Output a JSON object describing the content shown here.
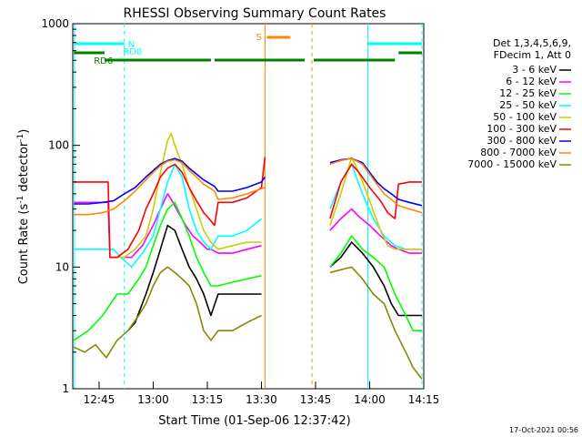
{
  "chart_data": {
    "type": "line",
    "title": "RHESSI Observing Summary Count Rates",
    "xlabel": "Start Time (01-Sep-06 12:37:42)",
    "ylabel_main": "Count Rate (s",
    "ylabel_sup1": "-1",
    "ylabel_mid": " detector",
    "ylabel_sup2": "-1",
    "ylabel_end": ")",
    "yscale": "log",
    "ylim": [
      1,
      1000
    ],
    "xlim_min": [
      37.7,
      135.0
    ],
    "xticks": [
      {
        "m": 45,
        "label": "12:45"
      },
      {
        "m": 60,
        "label": "13:00"
      },
      {
        "m": 75,
        "label": "13:15"
      },
      {
        "m": 90,
        "label": "13:30"
      },
      {
        "m": 105,
        "label": "13:45"
      },
      {
        "m": 120,
        "label": "14:00"
      },
      {
        "m": 135,
        "label": "14:15"
      }
    ],
    "yticks": [
      {
        "v": 1,
        "label": "1"
      },
      {
        "v": 10,
        "label": "10"
      },
      {
        "v": 100,
        "label": "100"
      },
      {
        "v": 1000,
        "label": "1000"
      }
    ],
    "legend_header": [
      "Det 1,3,4,5,6,9,",
      "FDecim 1, Att 0"
    ],
    "series": [
      {
        "name": "3 - 6 keV",
        "color": "#000000",
        "points": [
          [
            53,
            3
          ],
          [
            55,
            3.5
          ],
          [
            58,
            6
          ],
          [
            60,
            9
          ],
          [
            62,
            14
          ],
          [
            64,
            22
          ],
          [
            66,
            20
          ],
          [
            68,
            14
          ],
          [
            70,
            10
          ],
          [
            72,
            8
          ],
          [
            74,
            6
          ],
          [
            76,
            4
          ],
          [
            78,
            6
          ],
          [
            82,
            6
          ],
          [
            86,
            6
          ],
          [
            90,
            6
          ],
          [
            107,
            null
          ],
          [
            109,
            10
          ],
          [
            112,
            12
          ],
          [
            115,
            16
          ],
          [
            118,
            13
          ],
          [
            121,
            10
          ],
          [
            124,
            7
          ],
          [
            126,
            5
          ],
          [
            128,
            4
          ],
          [
            132,
            4
          ],
          [
            134.5,
            4
          ]
        ]
      },
      {
        "name": "6 - 12 keV",
        "color": "#ff00ff",
        "points": [
          [
            38,
            34
          ],
          [
            42,
            34
          ],
          [
            46,
            34
          ],
          [
            47.5,
            34
          ],
          [
            48,
            12
          ],
          [
            51,
            12
          ],
          [
            54,
            12
          ],
          [
            57,
            15
          ],
          [
            60,
            22
          ],
          [
            62,
            30
          ],
          [
            64,
            40
          ],
          [
            65,
            36
          ],
          [
            67,
            28
          ],
          [
            69,
            22
          ],
          [
            71,
            18
          ],
          [
            73,
            16
          ],
          [
            75,
            14
          ],
          [
            76,
            14
          ],
          [
            78,
            13
          ],
          [
            82,
            13
          ],
          [
            86,
            14
          ],
          [
            90,
            15
          ],
          [
            107,
            null
          ],
          [
            109,
            20
          ],
          [
            112,
            25
          ],
          [
            115,
            30
          ],
          [
            117,
            26
          ],
          [
            120,
            22
          ],
          [
            123,
            18
          ],
          [
            126,
            15
          ],
          [
            128,
            14
          ],
          [
            131,
            13
          ],
          [
            134.5,
            13
          ]
        ]
      },
      {
        "name": "12 - 25 keV",
        "color": "#00ff00",
        "points": [
          [
            38,
            2.5
          ],
          [
            42,
            3
          ],
          [
            46,
            4
          ],
          [
            50,
            6
          ],
          [
            53,
            6
          ],
          [
            56,
            8
          ],
          [
            58,
            10
          ],
          [
            60,
            15
          ],
          [
            62,
            22
          ],
          [
            64,
            30
          ],
          [
            66,
            34
          ],
          [
            68,
            25
          ],
          [
            70,
            18
          ],
          [
            72,
            12
          ],
          [
            74,
            9
          ],
          [
            76,
            7
          ],
          [
            78,
            7
          ],
          [
            82,
            7.5
          ],
          [
            86,
            8
          ],
          [
            90,
            8.5
          ],
          [
            107,
            null
          ],
          [
            109,
            10
          ],
          [
            112,
            13
          ],
          [
            115,
            18
          ],
          [
            118,
            14
          ],
          [
            121,
            12
          ],
          [
            124,
            10
          ],
          [
            127,
            6
          ],
          [
            130,
            4
          ],
          [
            132,
            3
          ],
          [
            134.5,
            3
          ]
        ]
      },
      {
        "name": "25 - 50 keV",
        "color": "#00ffff",
        "points": [
          [
            38,
            14
          ],
          [
            42,
            14
          ],
          [
            46,
            14
          ],
          [
            49,
            14
          ],
          [
            51,
            12
          ],
          [
            54,
            10
          ],
          [
            57,
            13
          ],
          [
            60,
            18
          ],
          [
            62,
            30
          ],
          [
            64,
            50
          ],
          [
            66,
            70
          ],
          [
            68,
            55
          ],
          [
            70,
            30
          ],
          [
            72,
            20
          ],
          [
            74,
            16
          ],
          [
            76,
            14
          ],
          [
            78,
            18
          ],
          [
            82,
            18
          ],
          [
            86,
            20
          ],
          [
            90,
            25
          ],
          [
            107,
            null
          ],
          [
            109,
            30
          ],
          [
            112,
            50
          ],
          [
            115,
            70
          ],
          [
            118,
            40
          ],
          [
            121,
            25
          ],
          [
            124,
            18
          ],
          [
            127,
            15
          ],
          [
            130,
            14
          ],
          [
            134.5,
            14
          ]
        ]
      },
      {
        "name": "50 - 100 keV",
        "color": "#cccc00",
        "points": [
          [
            49,
            12
          ],
          [
            52,
            12
          ],
          [
            55,
            14
          ],
          [
            58,
            18
          ],
          [
            60,
            30
          ],
          [
            62,
            60
          ],
          [
            64,
            110
          ],
          [
            65,
            125
          ],
          [
            66,
            100
          ],
          [
            68,
            70
          ],
          [
            70,
            45
          ],
          [
            72,
            30
          ],
          [
            74,
            20
          ],
          [
            76,
            16
          ],
          [
            78,
            14
          ],
          [
            82,
            15
          ],
          [
            86,
            16
          ],
          [
            90,
            16
          ],
          [
            107,
            null
          ],
          [
            109,
            22
          ],
          [
            112,
            40
          ],
          [
            115,
            80
          ],
          [
            117,
            60
          ],
          [
            120,
            35
          ],
          [
            123,
            20
          ],
          [
            125,
            15
          ],
          [
            127,
            14
          ],
          [
            130,
            14
          ],
          [
            134.5,
            14
          ]
        ]
      },
      {
        "name": "100 - 300 keV",
        "color": "#ff0000",
        "points": [
          [
            38,
            50
          ],
          [
            42,
            50
          ],
          [
            46,
            50
          ],
          [
            47.5,
            50
          ],
          [
            48,
            12
          ],
          [
            50,
            12
          ],
          [
            53,
            14
          ],
          [
            56,
            20
          ],
          [
            58,
            30
          ],
          [
            60,
            40
          ],
          [
            62,
            55
          ],
          [
            64,
            65
          ],
          [
            66,
            70
          ],
          [
            68,
            60
          ],
          [
            70,
            45
          ],
          [
            72,
            35
          ],
          [
            74,
            28
          ],
          [
            76,
            24
          ],
          [
            77,
            22
          ],
          [
            78,
            34
          ],
          [
            82,
            34
          ],
          [
            86,
            37
          ],
          [
            90,
            45
          ],
          [
            91,
            80
          ],
          [
            107,
            null
          ],
          [
            109,
            25
          ],
          [
            112,
            50
          ],
          [
            115,
            70
          ],
          [
            117,
            60
          ],
          [
            120,
            45
          ],
          [
            123,
            35
          ],
          [
            125,
            28
          ],
          [
            127,
            25
          ],
          [
            128,
            48
          ],
          [
            131,
            50
          ],
          [
            134.5,
            50
          ]
        ]
      },
      {
        "name": "300 - 800 keV",
        "color": "#0000ff",
        "points": [
          [
            38,
            33
          ],
          [
            42,
            33
          ],
          [
            46,
            34
          ],
          [
            49,
            35
          ],
          [
            52,
            40
          ],
          [
            55,
            45
          ],
          [
            58,
            55
          ],
          [
            60,
            62
          ],
          [
            62,
            70
          ],
          [
            64,
            75
          ],
          [
            66,
            78
          ],
          [
            68,
            74
          ],
          [
            70,
            65
          ],
          [
            72,
            58
          ],
          [
            74,
            52
          ],
          [
            76,
            48
          ],
          [
            77,
            46
          ],
          [
            78,
            42
          ],
          [
            82,
            42
          ],
          [
            86,
            45
          ],
          [
            90,
            50
          ],
          [
            91,
            55
          ],
          [
            107,
            null
          ],
          [
            109,
            72
          ],
          [
            112,
            76
          ],
          [
            115,
            78
          ],
          [
            118,
            72
          ],
          [
            120,
            60
          ],
          [
            122,
            50
          ],
          [
            124,
            44
          ],
          [
            126,
            40
          ],
          [
            128,
            36
          ],
          [
            131,
            34
          ],
          [
            134.5,
            32
          ]
        ]
      },
      {
        "name": "800 - 7000 keV",
        "color": "#ff8800",
        "points": [
          [
            38,
            27
          ],
          [
            42,
            27
          ],
          [
            46,
            28
          ],
          [
            49,
            30
          ],
          [
            52,
            35
          ],
          [
            55,
            42
          ],
          [
            58,
            52
          ],
          [
            60,
            60
          ],
          [
            62,
            68
          ],
          [
            64,
            74
          ],
          [
            66,
            76
          ],
          [
            68,
            72
          ],
          [
            70,
            62
          ],
          [
            72,
            55
          ],
          [
            74,
            48
          ],
          [
            76,
            44
          ],
          [
            77,
            42
          ],
          [
            78,
            36
          ],
          [
            82,
            37
          ],
          [
            86,
            40
          ],
          [
            90,
            44
          ],
          [
            91,
            45
          ],
          [
            107,
            null
          ],
          [
            109,
            70
          ],
          [
            112,
            75
          ],
          [
            115,
            78
          ],
          [
            118,
            70
          ],
          [
            120,
            58
          ],
          [
            122,
            48
          ],
          [
            124,
            40
          ],
          [
            126,
            36
          ],
          [
            128,
            32
          ],
          [
            131,
            30
          ],
          [
            134.5,
            28
          ]
        ]
      },
      {
        "name": "7000 - 15000 keV",
        "color": "#888800",
        "points": [
          [
            38,
            2.2
          ],
          [
            41,
            2
          ],
          [
            44,
            2.3
          ],
          [
            47,
            1.8
          ],
          [
            50,
            2.5
          ],
          [
            53,
            3
          ],
          [
            56,
            4
          ],
          [
            58,
            5
          ],
          [
            60,
            7
          ],
          [
            62,
            9
          ],
          [
            64,
            10
          ],
          [
            66,
            9
          ],
          [
            68,
            8
          ],
          [
            70,
            7
          ],
          [
            72,
            5
          ],
          [
            74,
            3
          ],
          [
            76,
            2.5
          ],
          [
            78,
            3
          ],
          [
            82,
            3
          ],
          [
            86,
            3.5
          ],
          [
            90,
            4
          ],
          [
            107,
            null
          ],
          [
            109,
            9
          ],
          [
            112,
            9.5
          ],
          [
            115,
            10
          ],
          [
            118,
            8
          ],
          [
            121,
            6
          ],
          [
            124,
            5
          ],
          [
            127,
            3
          ],
          [
            130,
            2
          ],
          [
            132,
            1.5
          ],
          [
            134.5,
            1.2
          ]
        ]
      }
    ],
    "attenuator_segments": [
      {
        "name": "RD0",
        "color": "#00ffff",
        "start_m": 38,
        "end_m": 52
      },
      {
        "name": "RD6",
        "color": "#008000",
        "start_m": 38,
        "end_m": 46.5
      },
      {
        "name": "",
        "color": "#008000",
        "start_m": 46.5,
        "end_m": 76
      },
      {
        "name": "",
        "color": "#008000",
        "start_m": 77,
        "end_m": 102
      }
    ],
    "markers": [
      {
        "label": "N",
        "color": "#00ffff"
      },
      {
        "label": "S",
        "color": "#ff8800"
      }
    ]
  },
  "footer": {
    "date": "17-Oct-2021 00:56"
  }
}
